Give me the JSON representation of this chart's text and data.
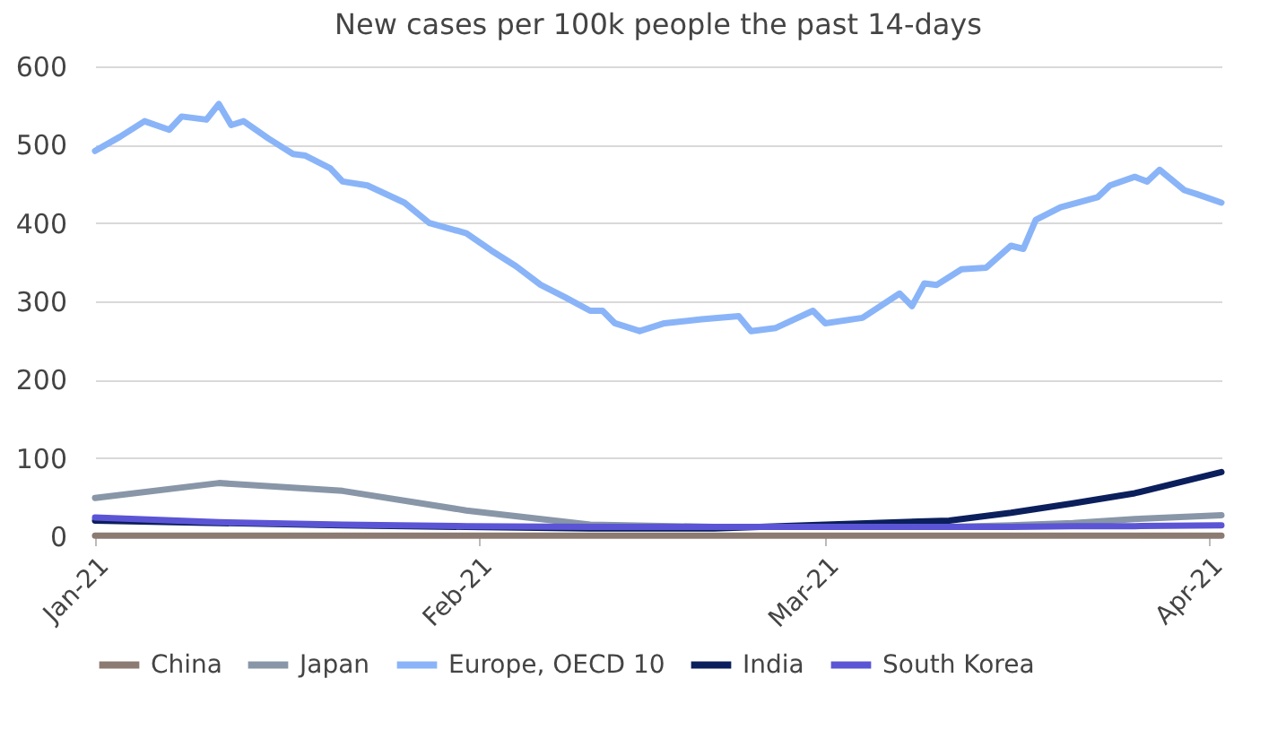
{
  "chart_data": {
    "type": "line",
    "title": "New cases per 100k people the past 14-days",
    "x": [
      "2021-01-01",
      "2021-01-11",
      "2021-01-21",
      "2021-01-31",
      "2021-02-10",
      "2021-02-20",
      "2021-03-01",
      "2021-03-11",
      "2021-03-16",
      "2021-03-21",
      "2021-03-26",
      "2021-04-02"
    ],
    "series": [
      {
        "name": "China",
        "color": "#8c7b72",
        "values": [
          1,
          1,
          1,
          1,
          1,
          1,
          1,
          1,
          1,
          1,
          1,
          1
        ]
      },
      {
        "name": "Japan",
        "color": "#8896a8",
        "values": [
          49,
          68,
          58,
          33,
          15,
          12,
          12,
          12,
          14,
          17,
          22,
          27
        ]
      },
      {
        "name": "Europe, OECD 10",
        "color": "#8ab4f8",
        "x": [
          "2021-01-01",
          "2021-01-03",
          "2021-01-05",
          "2021-01-07",
          "2021-01-08",
          "2021-01-10",
          "2021-01-11",
          "2021-01-12",
          "2021-01-13",
          "2021-01-15",
          "2021-01-17",
          "2021-01-18",
          "2021-01-20",
          "2021-01-21",
          "2021-01-23",
          "2021-01-26",
          "2021-01-28",
          "2021-01-31",
          "2021-02-02",
          "2021-02-04",
          "2021-02-06",
          "2021-02-08",
          "2021-02-10",
          "2021-02-11",
          "2021-02-12",
          "2021-02-14",
          "2021-02-16",
          "2021-02-19",
          "2021-02-22",
          "2021-02-23",
          "2021-02-25",
          "2021-02-28",
          "2021-03-01",
          "2021-03-04",
          "2021-03-07",
          "2021-03-08",
          "2021-03-09",
          "2021-03-10",
          "2021-03-12",
          "2021-03-14",
          "2021-03-16",
          "2021-03-17",
          "2021-03-18",
          "2021-03-20",
          "2021-03-23",
          "2021-03-24",
          "2021-03-26",
          "2021-03-27",
          "2021-03-28",
          "2021-03-30",
          "2021-03-31",
          "2021-04-02"
        ],
        "values": [
          492,
          510,
          530,
          519,
          536,
          532,
          552,
          525,
          530,
          508,
          488,
          486,
          470,
          453,
          448,
          426,
          400,
          387,
          365,
          345,
          321,
          305,
          288,
          288,
          272,
          262,
          272,
          277,
          281,
          262,
          266,
          288,
          272,
          279,
          310,
          294,
          323,
          321,
          341,
          343,
          371,
          367,
          404,
          420,
          433,
          448,
          459,
          453,
          468,
          442,
          437,
          426
        ]
      },
      {
        "name": "India",
        "color": "#0b1f5c",
        "values": [
          20,
          17,
          14,
          12,
          10,
          10,
          15,
          20,
          30,
          42,
          55,
          82
        ]
      },
      {
        "name": "South Korea",
        "color": "#5b55d6",
        "values": [
          24,
          18,
          15,
          13,
          12,
          12,
          12,
          12,
          12,
          13,
          13,
          14
        ]
      }
    ],
    "xlim": [
      "2021-01-01",
      "2021-04-02"
    ],
    "xticks": [
      {
        "value": "2021-01-01",
        "label": "Jan-21"
      },
      {
        "value": "2021-02-01",
        "label": "Feb-21"
      },
      {
        "value": "2021-03-01",
        "label": "Mar-21"
      },
      {
        "value": "2021-04-01",
        "label": "Apr-21"
      }
    ],
    "ylim": [
      0,
      600
    ],
    "yticks": [
      0,
      100,
      200,
      300,
      400,
      500,
      600
    ],
    "grid": "y",
    "legend": "bottom",
    "marker": "none",
    "line_style": "solid"
  }
}
